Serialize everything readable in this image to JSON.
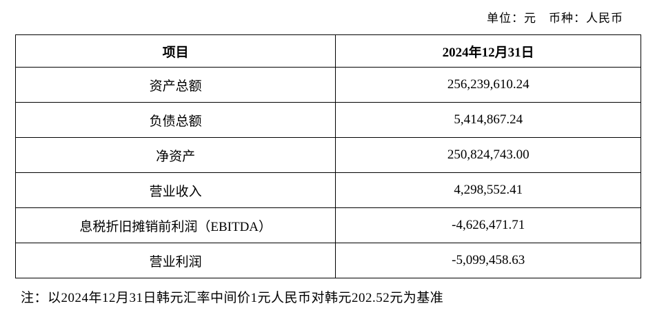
{
  "meta": {
    "unit_label": "单位：元　币种：人民币"
  },
  "table": {
    "headers": {
      "item": "项目",
      "date": "2024年12月31日"
    },
    "rows": [
      {
        "item": "资产总额",
        "value": "256,239,610.24"
      },
      {
        "item": "负债总额",
        "value": "5,414,867.24"
      },
      {
        "item": "净资产",
        "value": "250,824,743.00"
      },
      {
        "item": "营业收入",
        "value": "4,298,552.41"
      },
      {
        "item": "息税折旧摊销前利润（EBITDA）",
        "value": "-4,626,471.71"
      },
      {
        "item": "营业利润",
        "value": "-5,099,458.63"
      }
    ]
  },
  "note": "注：以2024年12月31日韩元汇率中间价1元人民币对韩元202.52元为基准"
}
